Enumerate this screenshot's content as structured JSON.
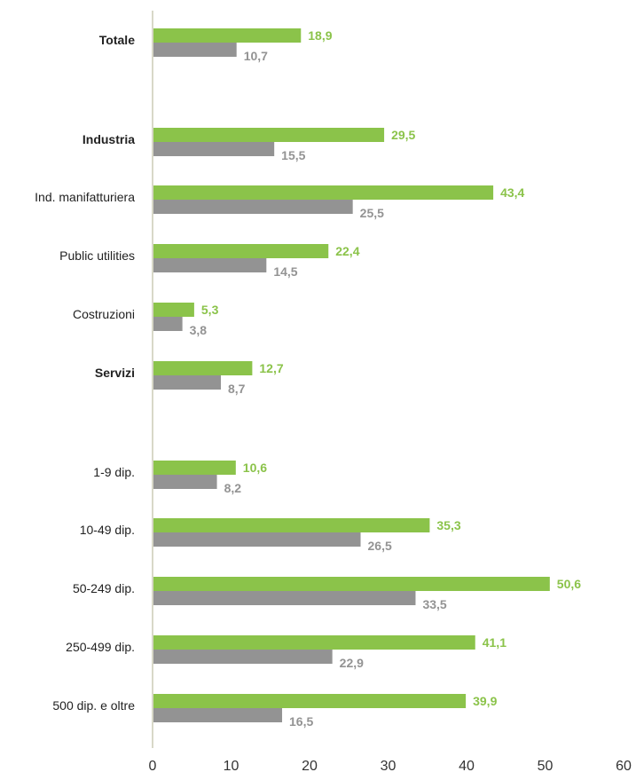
{
  "chart_data": {
    "type": "bar",
    "orientation": "horizontal",
    "title": "",
    "xlabel": "",
    "ylabel": "",
    "xlim": [
      0,
      60
    ],
    "ticks": [
      "0",
      "10",
      "20",
      "30",
      "40",
      "50",
      "60"
    ],
    "grid": false,
    "legend": "none",
    "colors": {
      "series_1": "#8bc34a",
      "series_2": "#939393",
      "axis": "#d8d8c8"
    },
    "categories": [
      {
        "label": "Totale",
        "bold": true,
        "values": [
          18.9,
          10.7
        ],
        "texts": [
          "18,9",
          "10,7"
        ]
      },
      {
        "label": "Industria",
        "bold": true,
        "values": [
          29.5,
          15.5
        ],
        "texts": [
          "29,5",
          "15,5"
        ]
      },
      {
        "label": "Ind. manifatturiera",
        "bold": false,
        "values": [
          43.4,
          25.5
        ],
        "texts": [
          "43,4",
          "25,5"
        ]
      },
      {
        "label": "Public utilities",
        "bold": false,
        "values": [
          22.4,
          14.5
        ],
        "texts": [
          "22,4",
          "14,5"
        ]
      },
      {
        "label": "Costruzioni",
        "bold": false,
        "values": [
          5.3,
          3.8
        ],
        "texts": [
          "5,3",
          "3,8"
        ]
      },
      {
        "label": "Servizi",
        "bold": true,
        "values": [
          12.7,
          8.7
        ],
        "texts": [
          "12,7",
          "8,7"
        ]
      },
      {
        "label": "1-9 dip.",
        "bold": false,
        "values": [
          10.6,
          8.2
        ],
        "texts": [
          "10,6",
          "8,2"
        ]
      },
      {
        "label": "10-49 dip.",
        "bold": false,
        "values": [
          35.3,
          26.5
        ],
        "texts": [
          "35,3",
          "26,5"
        ]
      },
      {
        "label": "50-249 dip.",
        "bold": false,
        "values": [
          50.6,
          33.5
        ],
        "texts": [
          "50,6",
          "33,5"
        ]
      },
      {
        "label": "250-499 dip.",
        "bold": false,
        "values": [
          41.1,
          22.9
        ],
        "texts": [
          "41,1",
          "22,9"
        ]
      },
      {
        "label": "500 dip. e oltre",
        "bold": false,
        "values": [
          39.9,
          16.5
        ],
        "texts": [
          "39,9",
          "16,5"
        ]
      }
    ]
  }
}
